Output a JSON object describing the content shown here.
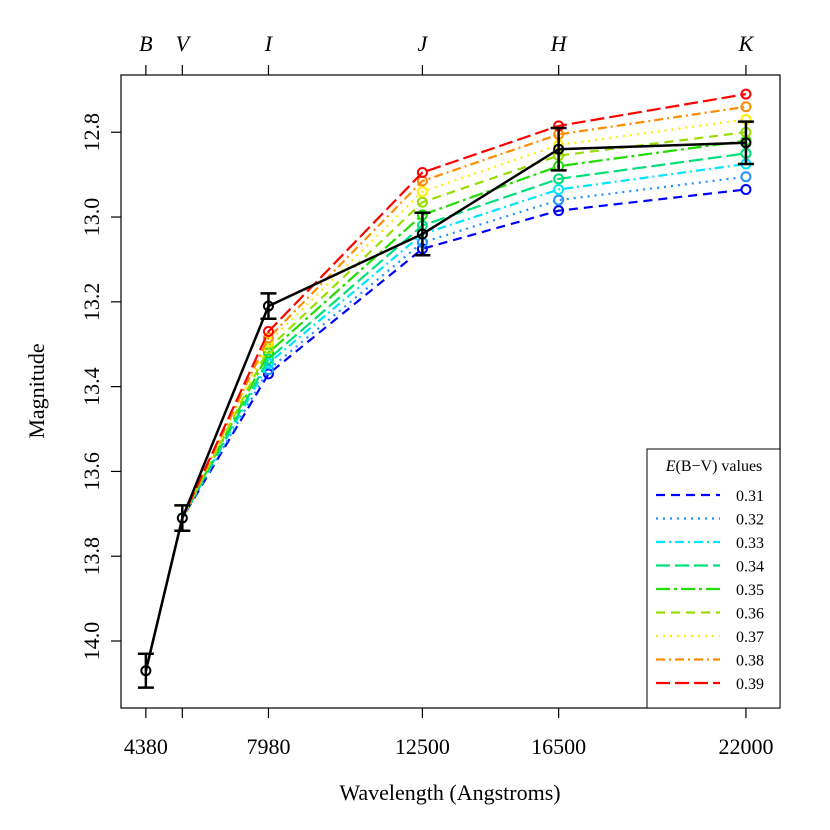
{
  "chart_data": {
    "type": "line",
    "xlabel": "Wavelength (Angstroms)",
    "ylabel": "Magnitude",
    "x_ticks": [
      4380,
      7980,
      12500,
      16500,
      22000
    ],
    "y_ticks": [
      "12.8",
      "13.0",
      "13.2",
      "13.4",
      "13.6",
      "13.8",
      "14.0"
    ],
    "y_tick_values": [
      12.8,
      13.0,
      13.2,
      13.4,
      13.6,
      13.8,
      14.0
    ],
    "xlim": [
      3650,
      23000
    ],
    "ylim": [
      14.158,
      12.665
    ],
    "y_inverted": true,
    "top_axis": {
      "labels": [
        "B",
        "V",
        "I",
        "J",
        "H",
        "K"
      ],
      "x": [
        4380,
        5450,
        7980,
        12500,
        16500,
        22000
      ]
    },
    "legend": {
      "title_var": "E",
      "title_arg": "(B−V)",
      "title_suffix": " values",
      "position": "bottom-right"
    },
    "series": [
      {
        "name": "0.31",
        "color": "#0000ff",
        "dash": "9,6",
        "x": [
          7980,
          12500,
          16500,
          22000
        ],
        "y": [
          13.37,
          13.075,
          12.985,
          12.935
        ]
      },
      {
        "name": "0.32",
        "color": "#1e90ff",
        "dash": "2,5",
        "x": [
          7980,
          12500,
          16500,
          22000
        ],
        "y": [
          13.36,
          13.06,
          12.96,
          12.905
        ]
      },
      {
        "name": "0.33",
        "color": "#00e5ff",
        "dash": "9,4,2,4",
        "x": [
          7980,
          12500,
          16500,
          22000
        ],
        "y": [
          13.345,
          13.04,
          12.935,
          12.875
        ]
      },
      {
        "name": "0.34",
        "color": "#00e07a",
        "dash": "14,5",
        "x": [
          7980,
          12500,
          16500,
          22000
        ],
        "y": [
          13.335,
          13.02,
          12.91,
          12.85
        ]
      },
      {
        "name": "0.35",
        "color": "#22dd00",
        "dash": "14,4,3,4",
        "x": [
          7980,
          12500,
          16500,
          22000
        ],
        "y": [
          13.32,
          12.995,
          12.88,
          12.82
        ]
      },
      {
        "name": "0.36",
        "color": "#99dd00",
        "dash": "9,6",
        "x": [
          7980,
          12500,
          16500,
          22000
        ],
        "y": [
          13.31,
          12.965,
          12.855,
          12.8
        ]
      },
      {
        "name": "0.37",
        "color": "#ffee00",
        "dash": "2,5",
        "x": [
          7980,
          12500,
          16500,
          22000
        ],
        "y": [
          13.295,
          12.94,
          12.83,
          12.77
        ]
      },
      {
        "name": "0.38",
        "color": "#ff8c00",
        "dash": "9,4,2,4",
        "x": [
          7980,
          12500,
          16500,
          22000
        ],
        "y": [
          13.285,
          12.915,
          12.805,
          12.74
        ]
      },
      {
        "name": "0.39",
        "color": "#ff0000",
        "dash": "14,5",
        "x": [
          7980,
          12500,
          16500,
          22000
        ],
        "y": [
          13.27,
          12.895,
          12.785,
          12.71
        ]
      }
    ],
    "model_lead_in": {
      "x": [
        4380,
        5450
      ],
      "y": [
        14.07,
        13.71
      ]
    },
    "observed": {
      "color": "#000000",
      "x": [
        4380,
        5450,
        7980,
        12500,
        16500,
        22000
      ],
      "y": [
        14.07,
        13.71,
        13.21,
        13.04,
        12.84,
        12.825
      ],
      "err": [
        0.04,
        0.03,
        0.03,
        0.05,
        0.05,
        0.05
      ]
    }
  }
}
